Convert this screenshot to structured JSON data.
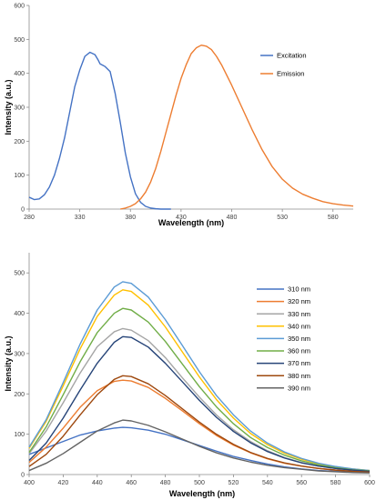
{
  "chart_data": [
    {
      "type": "line",
      "xlabel": "Wavelength (nm)",
      "ylabel": "Intensity (a.u.)",
      "xlim": [
        280,
        600
      ],
      "ylim": [
        0,
        600
      ],
      "xticks": [
        280,
        330,
        380,
        430,
        480,
        530,
        580
      ],
      "yticks": [
        0,
        100,
        200,
        300,
        400,
        500,
        600
      ],
      "grid": false,
      "legend_position": "top-right",
      "series": [
        {
          "name": "Excitation",
          "color": "#4472c4",
          "x": [
            280,
            285,
            290,
            295,
            300,
            305,
            310,
            315,
            320,
            325,
            330,
            335,
            340,
            345,
            348,
            350,
            352,
            355,
            360,
            365,
            370,
            375,
            380,
            385,
            390,
            395,
            400,
            405,
            410,
            415,
            420
          ],
          "y": [
            35,
            28,
            30,
            42,
            65,
            100,
            150,
            210,
            285,
            360,
            410,
            450,
            462,
            455,
            440,
            428,
            425,
            420,
            405,
            340,
            255,
            165,
            95,
            45,
            20,
            8,
            3,
            1,
            0,
            0,
            0
          ]
        },
        {
          "name": "Emission",
          "color": "#ed7d31",
          "x": [
            370,
            375,
            380,
            385,
            390,
            395,
            400,
            405,
            410,
            415,
            420,
            425,
            430,
            435,
            440,
            445,
            450,
            455,
            460,
            465,
            470,
            480,
            490,
            500,
            510,
            520,
            530,
            540,
            550,
            560,
            570,
            580,
            590,
            600
          ],
          "y": [
            0,
            3,
            8,
            16,
            30,
            50,
            80,
            120,
            170,
            225,
            280,
            335,
            385,
            425,
            458,
            475,
            483,
            480,
            470,
            450,
            425,
            365,
            300,
            235,
            175,
            125,
            88,
            62,
            44,
            32,
            22,
            16,
            12,
            9
          ]
        }
      ]
    },
    {
      "type": "line",
      "xlabel": "Wavelength (nm)",
      "ylabel": "Intensity (a.u.)",
      "xlim": [
        400,
        600
      ],
      "ylim": [
        0,
        550
      ],
      "xticks": [
        400,
        420,
        440,
        460,
        480,
        500,
        520,
        540,
        560,
        580,
        600
      ],
      "yticks": [
        0,
        100,
        200,
        300,
        400,
        500
      ],
      "grid": false,
      "legend_position": "right",
      "x": [
        400,
        410,
        420,
        430,
        440,
        450,
        455,
        460,
        470,
        480,
        490,
        500,
        510,
        520,
        530,
        540,
        550,
        560,
        570,
        580,
        590,
        600
      ],
      "series": [
        {
          "name": "310 nm",
          "color": "#4472c4",
          "y": [
            50,
            66,
            82,
            98,
            108,
            115,
            117,
            116,
            110,
            100,
            86,
            72,
            58,
            45,
            35,
            26,
            19,
            14,
            10,
            8,
            6,
            5
          ]
        },
        {
          "name": "320 nm",
          "color": "#ed7d31",
          "y": [
            30,
            68,
            115,
            167,
            208,
            231,
            234,
            232,
            216,
            189,
            158,
            126,
            97,
            73,
            54,
            39,
            28,
            21,
            15,
            11,
            8,
            6
          ]
        },
        {
          "name": "330 nm",
          "color": "#a5a5a5",
          "y": [
            52,
            108,
            178,
            252,
            317,
            354,
            362,
            358,
            332,
            290,
            240,
            192,
            148,
            111,
            82,
            59,
            42,
            30,
            21,
            15,
            11,
            8
          ]
        },
        {
          "name": "340 nm",
          "color": "#ffc000",
          "y": [
            65,
            132,
            220,
            312,
            392,
            445,
            458,
            454,
            420,
            366,
            304,
            242,
            186,
            140,
            102,
            74,
            53,
            38,
            27,
            19,
            14,
            10
          ]
        },
        {
          "name": "350 nm",
          "color": "#5b9bd5",
          "y": [
            68,
            136,
            228,
            324,
            408,
            465,
            478,
            474,
            440,
            384,
            320,
            255,
            196,
            148,
            108,
            78,
            56,
            40,
            28,
            20,
            14,
            10
          ]
        },
        {
          "name": "360 nm",
          "color": "#70ad47",
          "y": [
            55,
            118,
            198,
            280,
            352,
            400,
            412,
            408,
            378,
            330,
            274,
            218,
            168,
            126,
            92,
            67,
            48,
            34,
            24,
            17,
            12,
            9
          ]
        },
        {
          "name": "370 nm",
          "color": "#264478",
          "y": [
            35,
            78,
            140,
            210,
            276,
            328,
            342,
            340,
            316,
            276,
            230,
            184,
            142,
            107,
            79,
            57,
            41,
            29,
            21,
            15,
            11,
            8
          ]
        },
        {
          "name": "380 nm",
          "color": "#9e480e",
          "y": [
            20,
            50,
            95,
            148,
            198,
            236,
            245,
            243,
            225,
            196,
            163,
            130,
            100,
            75,
            55,
            40,
            29,
            21,
            15,
            11,
            8,
            6
          ]
        },
        {
          "name": "390 nm",
          "color": "#636363",
          "y": [
            10,
            28,
            52,
            80,
            108,
            128,
            135,
            133,
            122,
            106,
            88,
            70,
            54,
            41,
            31,
            23,
            17,
            13,
            9,
            7,
            5,
            4
          ]
        }
      ]
    }
  ]
}
